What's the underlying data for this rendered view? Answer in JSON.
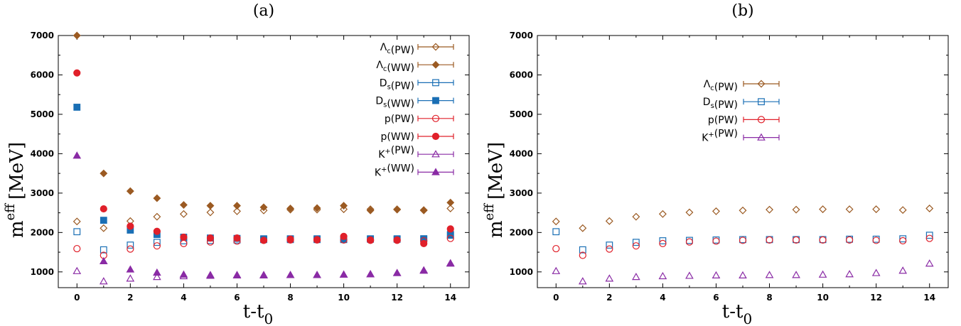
{
  "colors": {
    "lambda": "#9b5a22",
    "ds": "#1a6fb5",
    "p": "#e0202a",
    "k": "#8a2ba5"
  },
  "chart_data": [
    {
      "type": "scatter",
      "panel": "(a)",
      "xlabel_main": "t-t",
      "xlabel_sub": "0",
      "ylabel_main": "m",
      "ylabel_sup": "eff",
      "ylabel_unit": "[MeV]",
      "xlim": [
        -0.7,
        14.7
      ],
      "ylim": [
        600,
        7000
      ],
      "xticks": [
        "0",
        "2",
        "4",
        "6",
        "8",
        "10",
        "12",
        "14"
      ],
      "yticks": [
        "1000",
        "2000",
        "3000",
        "4000",
        "5000",
        "6000",
        "7000"
      ],
      "legend_position": "top-right",
      "series": [
        {
          "name_main": "Λ",
          "name_sub": "c",
          "name_tail": "(PW)",
          "color_key": "lambda",
          "marker": "diamond-open",
          "x": [
            0,
            1,
            2,
            3,
            4,
            5,
            6,
            7,
            8,
            9,
            10,
            11,
            12,
            13,
            14
          ],
          "y": [
            2280,
            2110,
            2290,
            2400,
            2470,
            2510,
            2540,
            2560,
            2580,
            2580,
            2590,
            2590,
            2590,
            2570,
            2610
          ]
        },
        {
          "name_main": "Λ",
          "name_sub": "c",
          "name_tail": "(WW)",
          "color_key": "lambda",
          "marker": "diamond-filled",
          "x": [
            0,
            1,
            2,
            3,
            4,
            5,
            6,
            7,
            8,
            9,
            10,
            11,
            12,
            13,
            14
          ],
          "y": [
            7000,
            3500,
            3050,
            2870,
            2700,
            2680,
            2680,
            2640,
            2610,
            2620,
            2680,
            2560,
            2580,
            2560,
            2760
          ]
        },
        {
          "name_main": "D",
          "name_sub": "s",
          "name_tail": "(PW)",
          "color_key": "ds",
          "marker": "square-open",
          "x": [
            0,
            1,
            2,
            3,
            4,
            5,
            6,
            7,
            8,
            9,
            10,
            11,
            12,
            13,
            14
          ],
          "y": [
            2020,
            1560,
            1680,
            1750,
            1790,
            1800,
            1810,
            1820,
            1820,
            1820,
            1820,
            1830,
            1830,
            1840,
            1930
          ]
        },
        {
          "name_main": "D",
          "name_sub": "s",
          "name_tail": "(WW)",
          "color_key": "ds",
          "marker": "square-filled",
          "x": [
            0,
            1,
            2,
            3,
            4,
            5,
            6,
            7,
            8,
            9,
            10,
            11,
            12,
            13,
            14
          ],
          "y": [
            5180,
            2310,
            2060,
            1950,
            1880,
            1860,
            1850,
            1840,
            1840,
            1840,
            1830,
            1840,
            1840,
            1840,
            1950
          ]
        },
        {
          "name_main": "p",
          "name_sub": "",
          "name_tail": "(PW)",
          "color_key": "p",
          "marker": "circle-open",
          "x": [
            0,
            1,
            2,
            3,
            4,
            5,
            6,
            7,
            8,
            9,
            10,
            11,
            12,
            13,
            14
          ],
          "y": [
            1590,
            1420,
            1580,
            1660,
            1720,
            1760,
            1780,
            1800,
            1810,
            1810,
            1810,
            1810,
            1800,
            1790,
            1850
          ]
        },
        {
          "name_main": "p",
          "name_sub": "",
          "name_tail": "(WW)",
          "color_key": "p",
          "marker": "circle-filled",
          "x": [
            0,
            1,
            2,
            3,
            4,
            5,
            6,
            7,
            8,
            9,
            10,
            11,
            12,
            13,
            14
          ],
          "y": [
            6050,
            2600,
            2160,
            2030,
            1880,
            1860,
            1860,
            1800,
            1830,
            1820,
            1900,
            1800,
            1810,
            1720,
            2090
          ]
        },
        {
          "name_main": "K",
          "name_sup": "+",
          "name_sub": "",
          "name_tail": "(PW)",
          "color_key": "k",
          "marker": "triangle-open",
          "x": [
            0,
            1,
            2,
            3,
            4,
            5,
            6,
            7,
            8,
            9,
            10,
            11,
            12,
            13,
            14
          ],
          "y": [
            1020,
            760,
            830,
            870,
            890,
            900,
            910,
            910,
            920,
            920,
            930,
            940,
            970,
            1030,
            1210
          ]
        },
        {
          "name_main": "K",
          "name_sup": "+",
          "name_sub": "",
          "name_tail": "(WW)",
          "color_key": "k",
          "marker": "triangle-filled",
          "x": [
            0,
            1,
            2,
            3,
            4,
            5,
            6,
            7,
            8,
            9,
            10,
            11,
            12,
            13,
            14
          ],
          "y": [
            3950,
            1270,
            1060,
            980,
            930,
            920,
            920,
            920,
            920,
            920,
            930,
            940,
            970,
            1040,
            1220
          ]
        }
      ]
    },
    {
      "type": "scatter",
      "panel": "(b)",
      "xlabel_main": "t-t",
      "xlabel_sub": "0",
      "ylabel_main": "m",
      "ylabel_sup": "eff",
      "ylabel_unit": "[MeV]",
      "xlim": [
        -0.7,
        14.7
      ],
      "ylim": [
        600,
        7000
      ],
      "xticks": [
        "0",
        "2",
        "4",
        "6",
        "8",
        "10",
        "12",
        "14"
      ],
      "yticks": [
        "1000",
        "2000",
        "3000",
        "4000",
        "5000",
        "6000",
        "7000"
      ],
      "legend_position": "top-center",
      "series": [
        {
          "name_main": "Λ",
          "name_sub": "c",
          "name_tail": "(PW)",
          "color_key": "lambda",
          "marker": "diamond-open",
          "x": [
            0,
            1,
            2,
            3,
            4,
            5,
            6,
            7,
            8,
            9,
            10,
            11,
            12,
            13,
            14
          ],
          "y": [
            2280,
            2110,
            2290,
            2400,
            2470,
            2510,
            2540,
            2560,
            2580,
            2580,
            2590,
            2590,
            2590,
            2570,
            2610
          ]
        },
        {
          "name_main": "D",
          "name_sub": "s",
          "name_tail": "(PW)",
          "color_key": "ds",
          "marker": "square-open",
          "x": [
            0,
            1,
            2,
            3,
            4,
            5,
            6,
            7,
            8,
            9,
            10,
            11,
            12,
            13,
            14
          ],
          "y": [
            2020,
            1560,
            1680,
            1750,
            1790,
            1800,
            1810,
            1820,
            1820,
            1820,
            1820,
            1830,
            1830,
            1840,
            1930
          ]
        },
        {
          "name_main": "p",
          "name_sub": "",
          "name_tail": "(PW)",
          "color_key": "p",
          "marker": "circle-open",
          "x": [
            0,
            1,
            2,
            3,
            4,
            5,
            6,
            7,
            8,
            9,
            10,
            11,
            12,
            13,
            14
          ],
          "y": [
            1590,
            1420,
            1580,
            1660,
            1720,
            1760,
            1780,
            1800,
            1810,
            1810,
            1810,
            1810,
            1800,
            1790,
            1850
          ]
        },
        {
          "name_main": "K",
          "name_sup": "+",
          "name_sub": "",
          "name_tail": "(PW)",
          "color_key": "k",
          "marker": "triangle-open",
          "x": [
            0,
            1,
            2,
            3,
            4,
            5,
            6,
            7,
            8,
            9,
            10,
            11,
            12,
            13,
            14
          ],
          "y": [
            1020,
            760,
            830,
            870,
            890,
            900,
            910,
            910,
            920,
            920,
            930,
            940,
            970,
            1030,
            1210
          ]
        }
      ]
    }
  ]
}
